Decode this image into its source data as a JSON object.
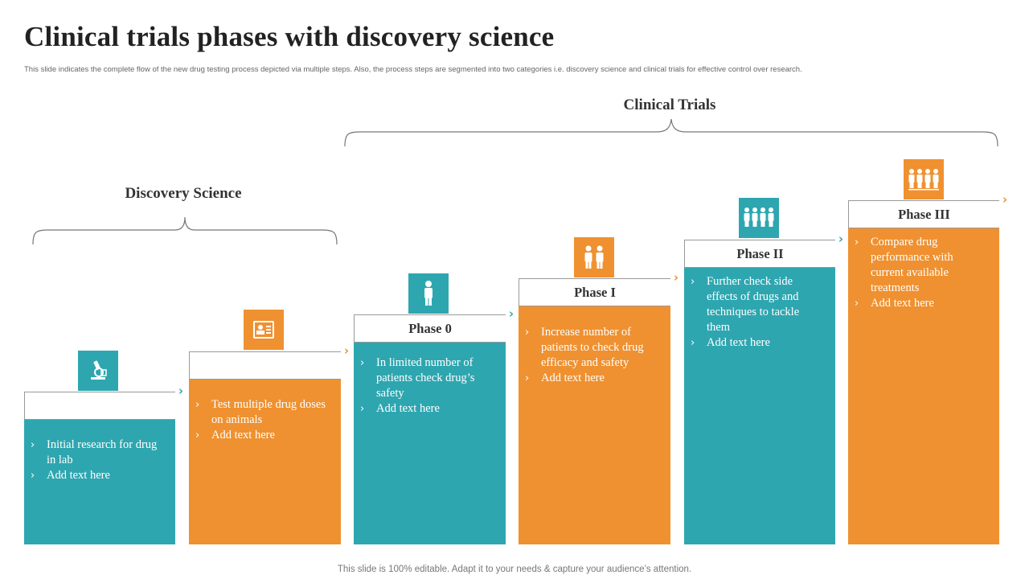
{
  "title": "Clinical trials phases with discovery science",
  "subtitle": "This slide indicates the complete flow of the new drug testing process depicted via multiple steps. Also, the process steps are segmented into two categories i.e. discovery science and clinical trials for effective control over research.",
  "groups": {
    "discovery": "Discovery Science",
    "clinical": "Clinical Trials"
  },
  "steps": [
    {
      "heading": "",
      "color": "teal",
      "icon": "microscope-icon",
      "bullets": [
        "Initial research for drug in lab",
        "Add text here"
      ]
    },
    {
      "heading": "",
      "color": "orange",
      "icon": "id-card-icon",
      "bullets": [
        "Test multiple drug doses on animals",
        "Add text here"
      ]
    },
    {
      "heading": "Phase 0",
      "color": "teal",
      "icon": "person-icon",
      "bullets": [
        "In limited number of patients check drug’s safety",
        "Add text here"
      ]
    },
    {
      "heading": "Phase I",
      "color": "orange",
      "icon": "two-people-icon",
      "bullets": [
        "Increase number of patients to check drug efficacy and safety",
        "Add text here"
      ]
    },
    {
      "heading": "Phase II",
      "color": "teal",
      "icon": "group-icon",
      "bullets": [
        "Further check side effects of drugs and techniques to tackle them",
        "Add text here"
      ]
    },
    {
      "heading": "Phase III",
      "color": "orange",
      "icon": "crowd-icon",
      "bullets": [
        "Compare drug performance with current available treatments",
        "Add text here"
      ]
    }
  ],
  "colors": {
    "teal": "#2ea6b0",
    "orange": "#ef9130"
  },
  "footer": "This slide is 100% editable. Adapt it to your needs & capture your audience’s attention."
}
